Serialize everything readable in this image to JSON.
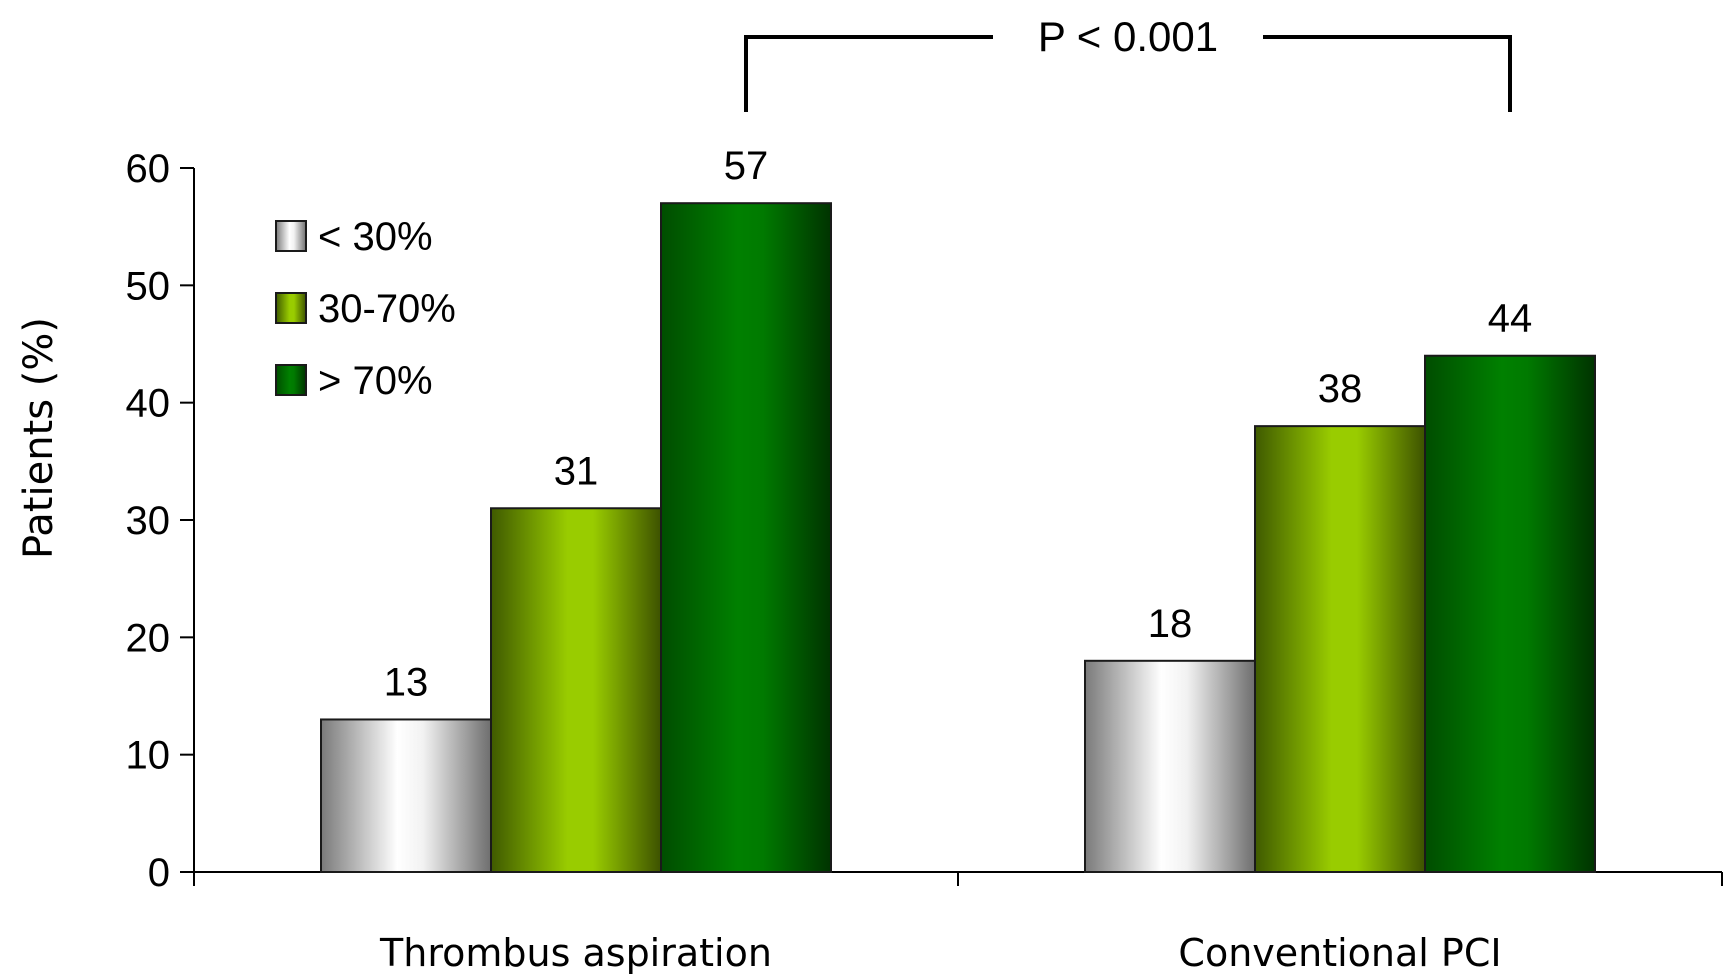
{
  "chart_data": {
    "type": "bar",
    "title": "",
    "xlabel": "",
    "ylabel": "Patients (%)",
    "ylim": [
      0,
      60
    ],
    "yticks": [
      0,
      10,
      20,
      30,
      40,
      50,
      60
    ],
    "categories": [
      "Thrombus aspiration",
      "Conventional PCI"
    ],
    "series": [
      {
        "name": "< 30%",
        "values": [
          13,
          18
        ],
        "data_labels": [
          "13",
          "18"
        ],
        "color": "#b3b3b3"
      },
      {
        "name": "30-70%",
        "values": [
          31,
          38
        ],
        "data_labels": [
          "31",
          "38"
        ],
        "color": "#99cc00"
      },
      {
        "name": "> 70%",
        "values": [
          57,
          44
        ],
        "data_labels": [
          "57",
          "44"
        ],
        "color": "#008000"
      }
    ],
    "legend": {
      "placement": "top-left"
    },
    "grid": false,
    "annotation": {
      "text": "P < 0.001",
      "between": [
        "Thrombus aspiration > 70%",
        "Conventional PCI > 70%"
      ]
    }
  }
}
